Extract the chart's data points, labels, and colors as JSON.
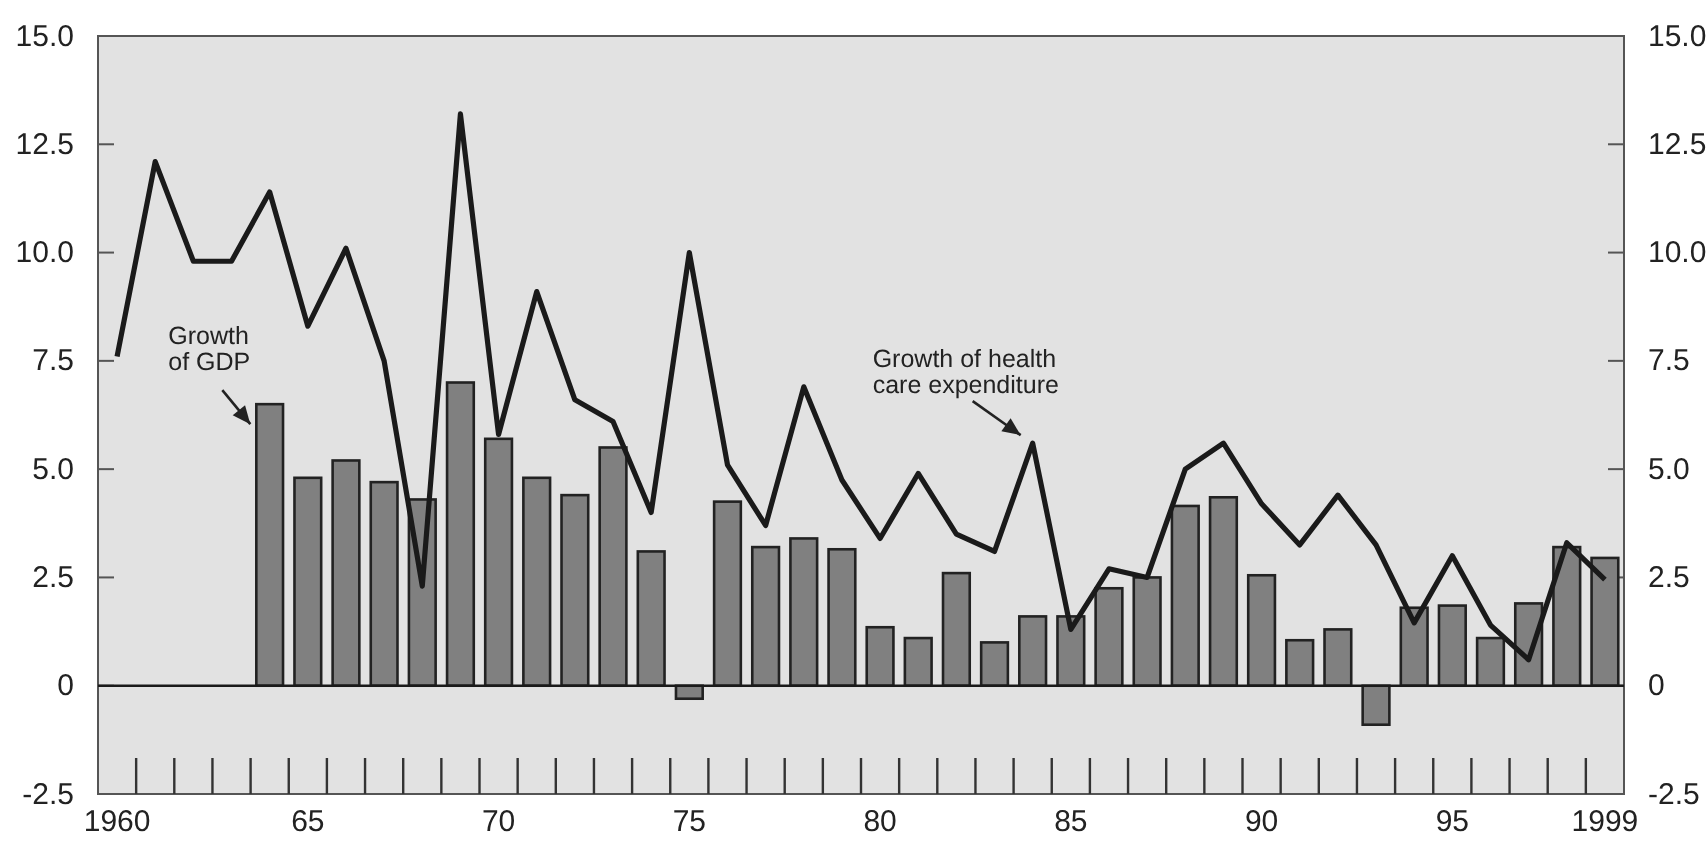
{
  "chart_data": {
    "type": "bar",
    "categories": [
      "1960",
      null,
      null,
      null,
      null,
      "65",
      null,
      null,
      null,
      null,
      "70",
      null,
      null,
      null,
      null,
      "75",
      null,
      null,
      null,
      null,
      "80",
      null,
      null,
      null,
      null,
      "85",
      null,
      null,
      null,
      null,
      "90",
      null,
      null,
      null,
      null,
      "95",
      null,
      null,
      null,
      "1999"
    ],
    "series": [
      {
        "name": "Growth of GDP",
        "color": "#808080",
        "values": [
          null,
          null,
          null,
          null,
          6.5,
          4.8,
          5.2,
          4.7,
          4.3,
          7.0,
          5.7,
          4.8,
          4.4,
          5.5,
          3.1,
          -0.3,
          4.25,
          3.2,
          3.4,
          3.15,
          1.35,
          1.1,
          2.6,
          1.0,
          1.6,
          1.6,
          2.25,
          2.5,
          4.15,
          4.35,
          2.55,
          1.05,
          1.3,
          -0.9,
          1.8,
          1.85,
          1.1,
          1.9,
          3.2,
          2.95
        ]
      },
      {
        "name": "Growth of health care expenditure",
        "type": "line",
        "color": "#1a1a1a",
        "values": [
          7.6,
          12.1,
          9.8,
          9.8,
          11.4,
          8.3,
          10.1,
          7.5,
          2.3,
          13.2,
          5.8,
          9.1,
          6.6,
          6.1,
          4.0,
          10.0,
          5.1,
          3.7,
          6.9,
          4.75,
          3.4,
          4.9,
          3.5,
          3.1,
          5.6,
          1.3,
          2.7,
          2.5,
          5.0,
          5.6,
          4.2,
          3.25,
          4.4,
          3.25,
          1.45,
          3.0,
          1.4,
          0.6,
          3.3,
          2.45
        ]
      }
    ],
    "ylim": [
      -2.5,
      15
    ],
    "yticks": [
      {
        "value": -2.5,
        "label": "-2.5"
      },
      0,
      2.5,
      {
        "value": 5,
        "label": "5.0"
      },
      7.5,
      {
        "value": 10,
        "label": "10.0"
      },
      12.5,
      {
        "value": 15,
        "label": "15.0"
      }
    ],
    "y2lim": [
      -2.5,
      15
    ],
    "y2ticks": [
      {
        "value": -2.5,
        "label": "-2.5"
      },
      0,
      2.5,
      {
        "value": 5,
        "label": "5.0"
      },
      7.5,
      {
        "value": 10,
        "label": "10.0"
      },
      12.5,
      {
        "value": 15,
        "label": "15.0"
      }
    ],
    "ref_lines": [
      {
        "axis": "y",
        "value": 0,
        "color": "#1a1a1a"
      }
    ],
    "grid": false,
    "marker": "none",
    "line_style": "solid"
  }
}
